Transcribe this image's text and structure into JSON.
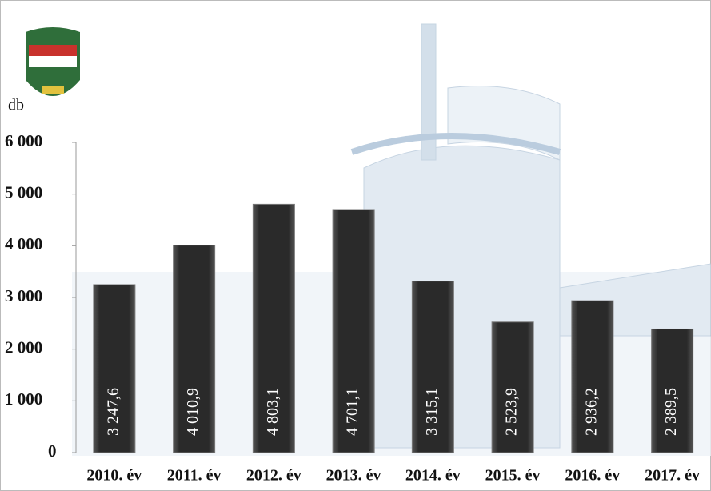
{
  "chart_data": {
    "type": "bar",
    "y_label": "db",
    "categories": [
      "2010. év",
      "2011. év",
      "2012. év",
      "2013. év",
      "2014. év",
      "2015. év",
      "2016. év",
      "2017. év"
    ],
    "values": [
      3247.6,
      4010.9,
      4803.1,
      4701.1,
      3315.1,
      2523.9,
      2936.2,
      2389.5
    ],
    "value_labels": [
      "3 247,6",
      "4 010,9",
      "4 803,1",
      "4 701,1",
      "3 315,1",
      "2 523,9",
      "2 936,2",
      "2 389,5"
    ],
    "color": "#2a2a2a",
    "ylim": [
      0,
      6000
    ],
    "yticks": [
      0,
      {
        "value": 1000,
        "label": "1 000"
      },
      {
        "value": 2000,
        "label": "2 000"
      },
      {
        "value": 3000,
        "label": "3 000"
      },
      {
        "value": 4000,
        "label": "4 000"
      },
      {
        "value": 5000,
        "label": "5 000"
      },
      {
        "value": 6000,
        "label": "6 000"
      }
    ]
  }
}
